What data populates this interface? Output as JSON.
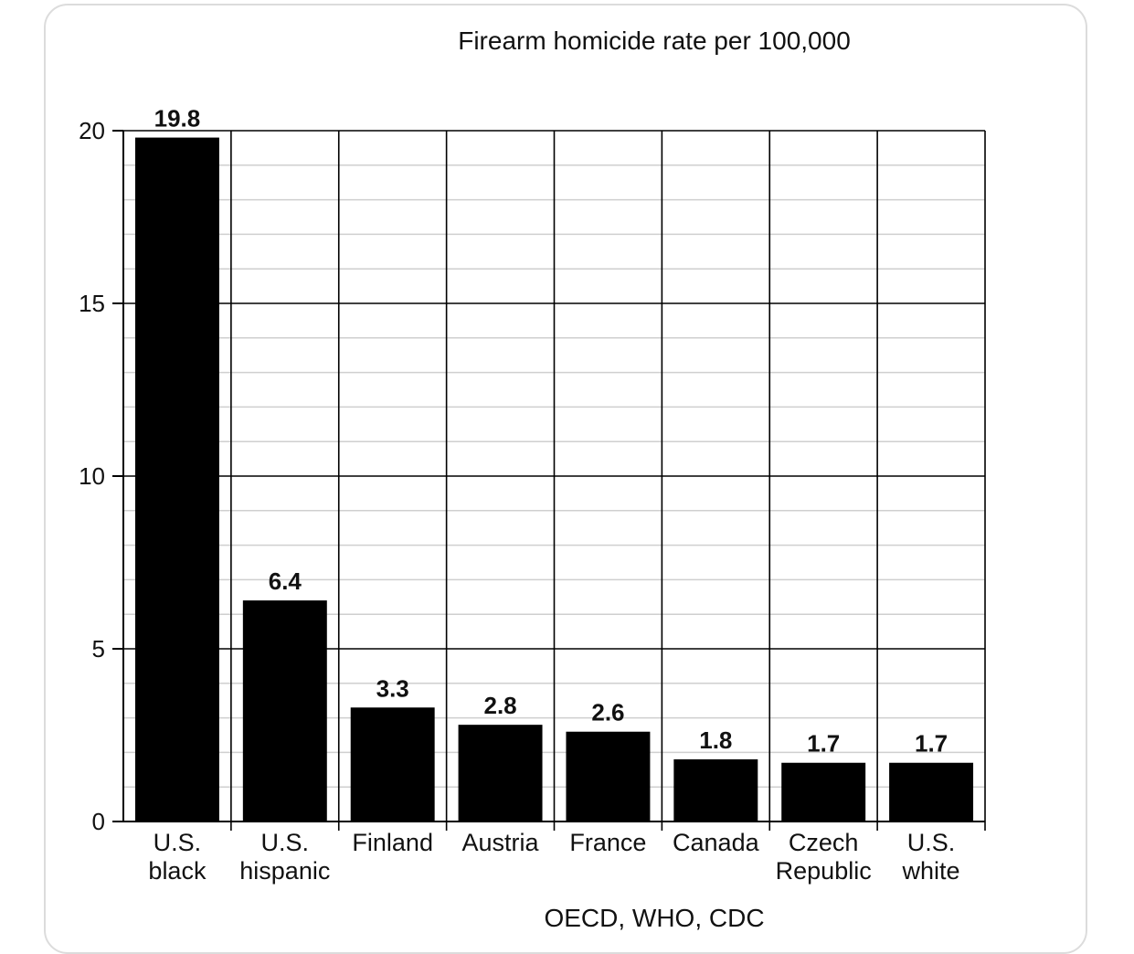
{
  "chart_data": {
    "type": "bar",
    "title": "Firearm homicide rate per 100,000",
    "source": "OECD, WHO, CDC",
    "categories": [
      [
        "U.S.",
        "black"
      ],
      [
        "U.S.",
        "hispanic"
      ],
      [
        "Finland"
      ],
      [
        "Austria"
      ],
      [
        "France"
      ],
      [
        "Canada"
      ],
      [
        "Czech",
        "Republic"
      ],
      [
        "U.S.",
        "white"
      ]
    ],
    "values": [
      19.8,
      6.4,
      3.3,
      2.8,
      2.6,
      1.8,
      1.7,
      1.7
    ],
    "data_labels": [
      "19.8",
      "6.4",
      "3.3",
      "2.8",
      "2.6",
      "1.8",
      "1.7",
      "1.7"
    ],
    "yticks": [
      "0",
      "5",
      "10",
      "15",
      "20"
    ],
    "ylim": [
      0,
      20
    ],
    "grid": true,
    "bar_color": "#000000",
    "grid_color": "#000000",
    "minor_grid_color": "#cfcfcf"
  }
}
